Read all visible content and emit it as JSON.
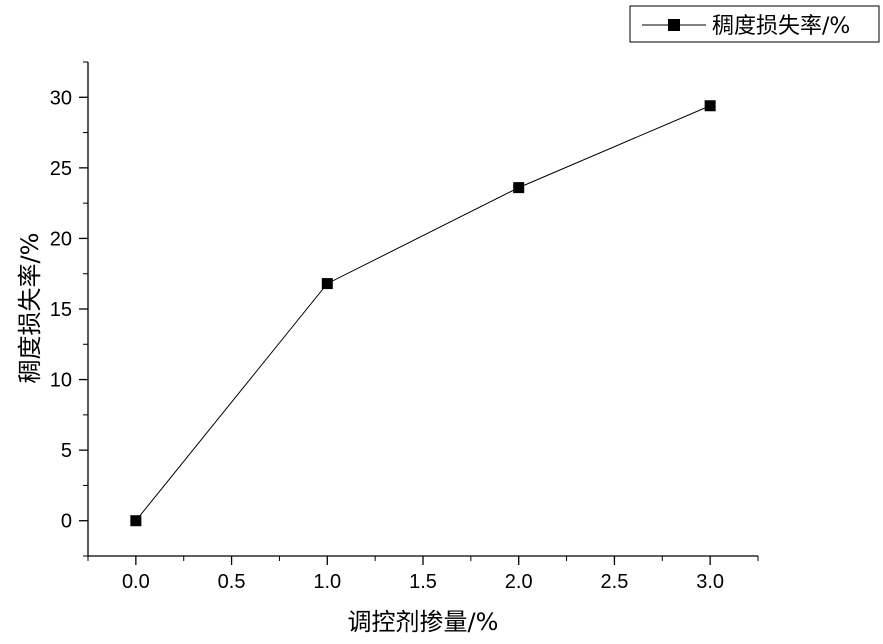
{
  "chart_data": {
    "type": "line",
    "x": [
      0.0,
      1.0,
      2.0,
      3.0
    ],
    "series": [
      {
        "name": "稠度损失率/%",
        "values": [
          0,
          16.8,
          23.6,
          29.4
        ],
        "marker": "square",
        "color": "#000000"
      }
    ],
    "xlabel": "调控剂掺量/%",
    "ylabel": "稠度损失率/%",
    "xlim": [
      -0.25,
      3.25
    ],
    "ylim": [
      -2.5,
      32.5
    ],
    "xticks": [
      0.0,
      0.5,
      1.0,
      1.5,
      2.0,
      2.5,
      3.0
    ],
    "xtick_labels": [
      "0.0",
      "0.5",
      "1.0",
      "1.5",
      "2.0",
      "2.5",
      "3.0"
    ],
    "yticks": [
      0,
      5,
      10,
      15,
      20,
      25,
      30
    ],
    "ytick_labels": [
      "0",
      "5",
      "10",
      "15",
      "20",
      "25",
      "30"
    ],
    "grid": false,
    "legend_position": "top-right"
  }
}
